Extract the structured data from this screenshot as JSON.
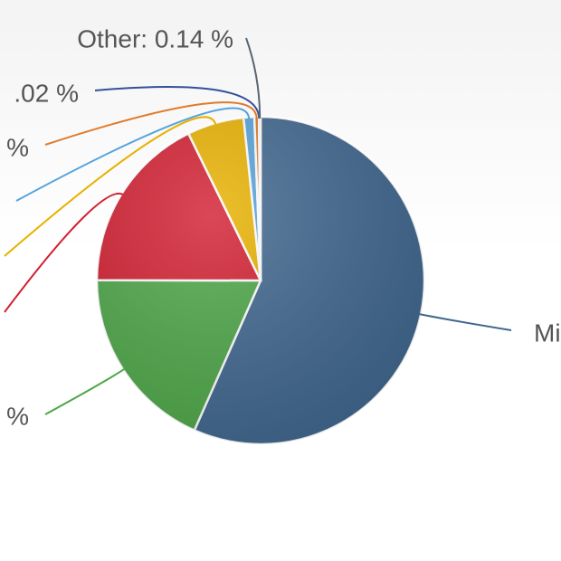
{
  "chart_data": {
    "type": "pie",
    "labels": [
      "Mi",
      "%",
      null,
      null,
      null,
      "%",
      ".02 %",
      "Other: 0.14 %"
    ],
    "values": [
      56.6,
      18.4,
      17.7,
      5.6,
      1.05,
      0.45,
      0.02,
      0.14
    ],
    "colors": [
      "#40678f",
      "#4ea749",
      "#d21f31",
      "#e8b100",
      "#57a3da",
      "#e07b2b",
      "#34509c",
      "#5a6672"
    ]
  }
}
